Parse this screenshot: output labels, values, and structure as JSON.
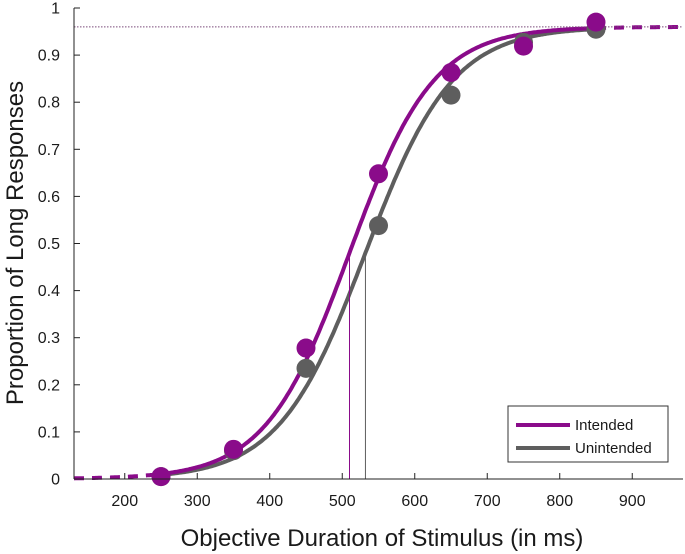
{
  "chart_data": {
    "type": "line",
    "title": "",
    "xlabel": "Objective Duration of Stimulus (in ms)",
    "ylabel": "Proportion of Long Responses",
    "xlim": [
      130,
      970
    ],
    "ylim": [
      0,
      1
    ],
    "xticks": [
      200,
      300,
      400,
      500,
      600,
      700,
      800,
      900
    ],
    "yticks": [
      0,
      0.1,
      0.2,
      0.3,
      0.4,
      0.5,
      0.6,
      0.7,
      0.8,
      0.9,
      1
    ],
    "grid": false,
    "legend_position": "bottom-right",
    "upper_asymptote": 0.96,
    "series": [
      {
        "name": "Intended",
        "color": "#8a0b8a",
        "points": {
          "x": [
            250,
            350,
            450,
            550,
            650,
            750,
            850
          ],
          "y": [
            0.005,
            0.063,
            0.278,
            0.648,
            0.863,
            0.919,
            0.97
          ]
        },
        "fit": {
          "pse": 510,
          "scale": 58,
          "upper": 0.96
        }
      },
      {
        "name": "Unintended",
        "color": "#5e5e5e",
        "points": {
          "x": [
            250,
            350,
            450,
            550,
            650,
            750,
            850
          ],
          "y": [
            0.005,
            0.06,
            0.235,
            0.538,
            0.815,
            0.927,
            0.955
          ]
        },
        "fit": {
          "pse": 532,
          "scale": 60,
          "upper": 0.96
        }
      }
    ]
  }
}
